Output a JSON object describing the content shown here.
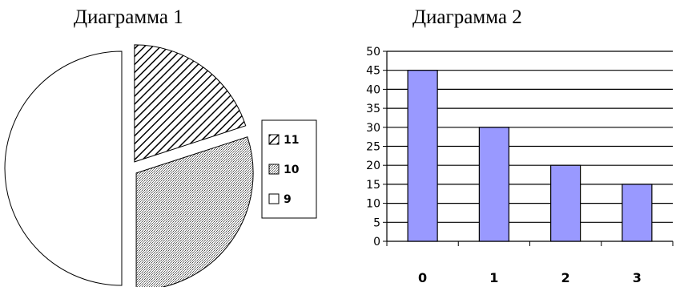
{
  "charts": {
    "pie": {
      "title": "Диаграмма 1"
    },
    "bar": {
      "title": "Диаграмма 2"
    }
  },
  "chart_data": [
    {
      "type": "pie",
      "title": "Диаграмма 1",
      "slices": [
        {
          "label": "11",
          "value": 20,
          "pattern": "diagonal-hatch"
        },
        {
          "label": "10",
          "value": 30,
          "pattern": "dotted"
        },
        {
          "label": "9",
          "value": 50,
          "pattern": "blank"
        }
      ],
      "legend": [
        "11",
        "10",
        "9"
      ],
      "legend_placement": "right",
      "exploded": true
    },
    {
      "type": "bar",
      "title": "Диаграмма 2",
      "categories": [
        "0",
        "1",
        "2",
        "3"
      ],
      "values": [
        45,
        30,
        20,
        15
      ],
      "ylim": [
        0,
        50
      ],
      "yticks": [
        "0",
        "5",
        "10",
        "15",
        "20",
        "25",
        "30",
        "35",
        "40",
        "45",
        "50"
      ],
      "grid": true,
      "bar_color": "#9999ff"
    }
  ]
}
